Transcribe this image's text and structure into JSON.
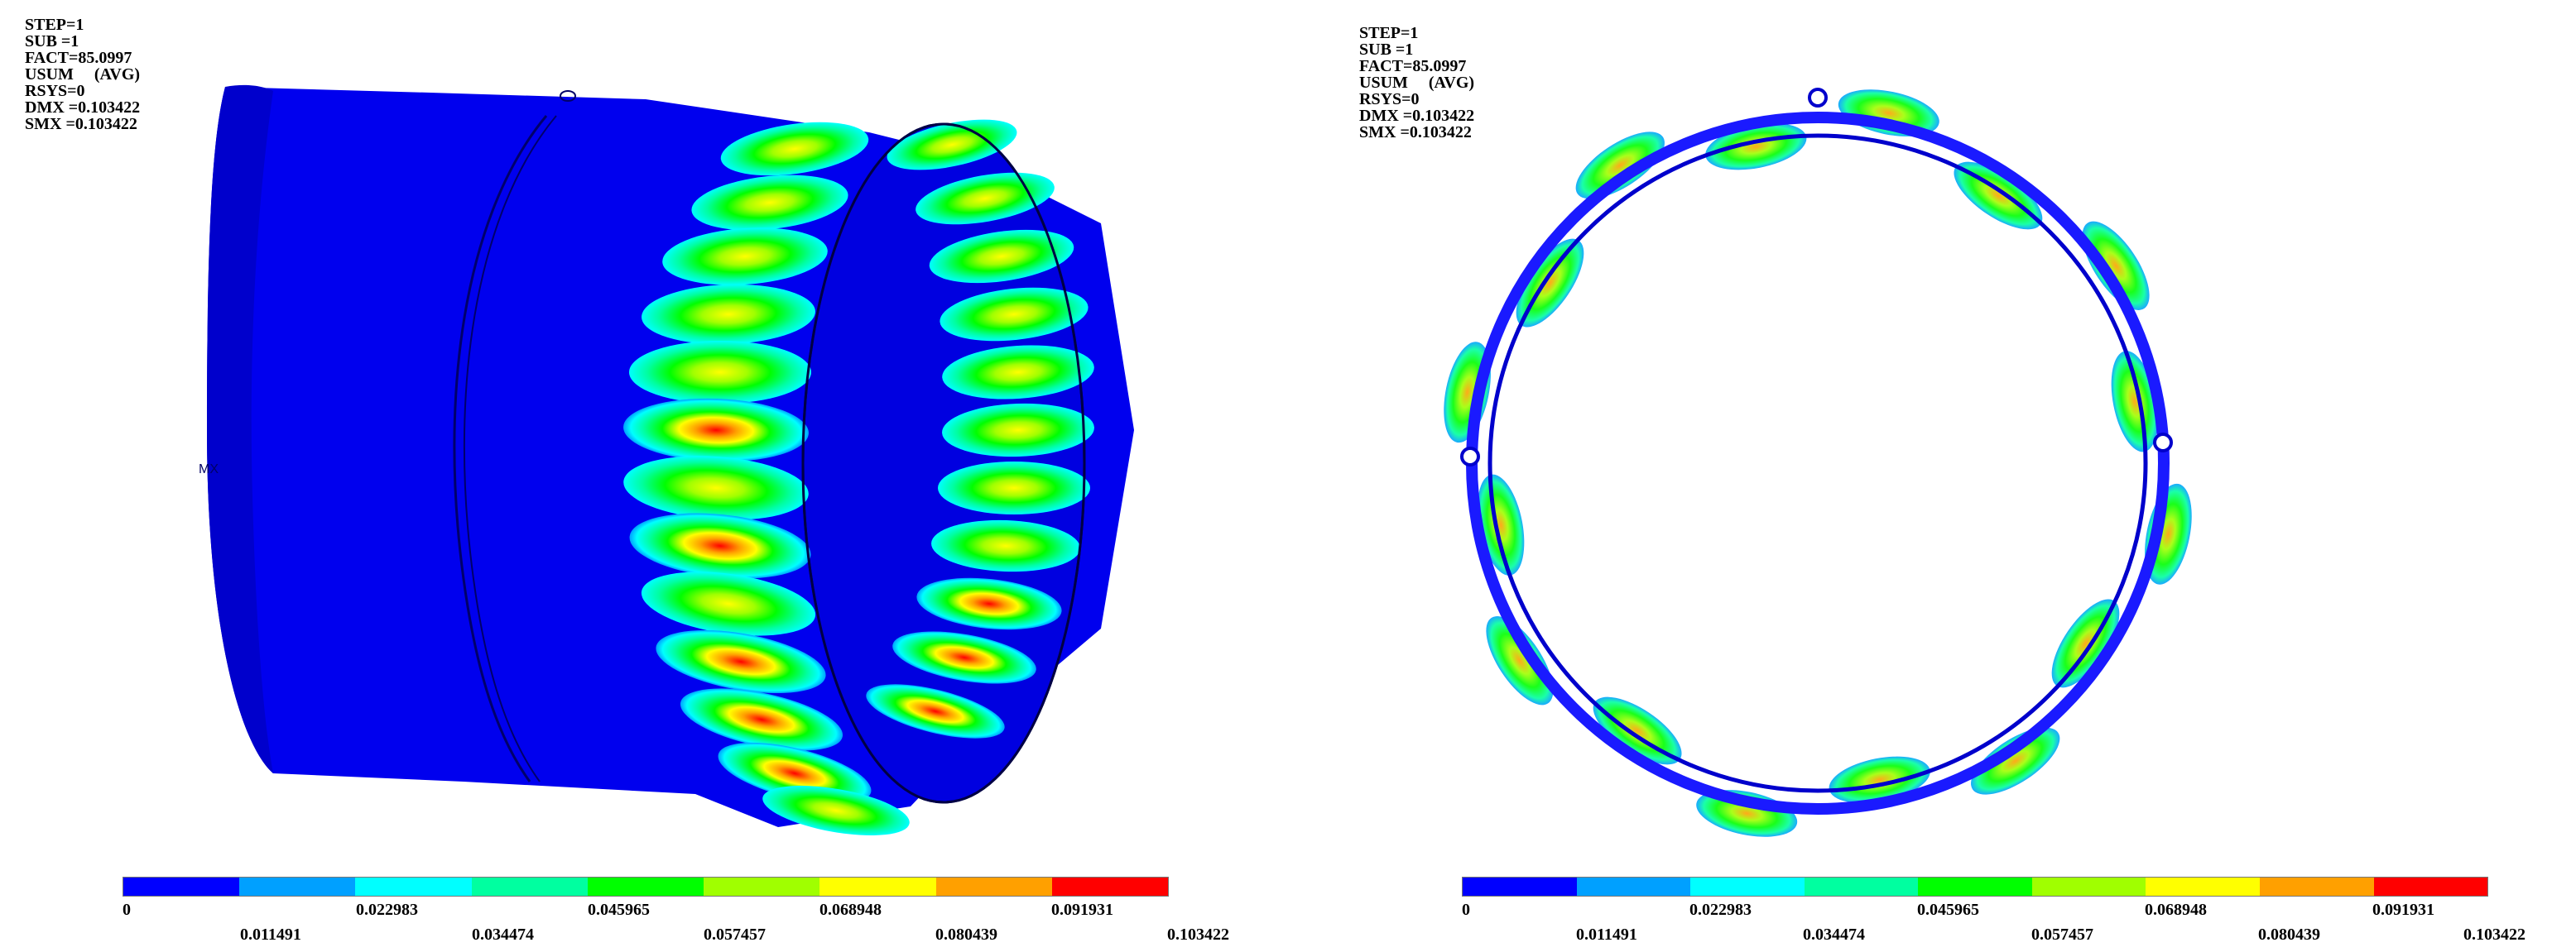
{
  "colormap": [
    "#0000ff",
    "#00a0ff",
    "#00ffff",
    "#00ffa0",
    "#00ff00",
    "#a0ff00",
    "#ffff00",
    "#ffa000",
    "#ff0000"
  ],
  "legend_labels": [
    "0",
    "0.011491",
    "0.022983",
    "0.034474",
    "0.045965",
    "0.057457",
    "0.068948",
    "0.080439",
    "0.091931",
    "0.103422"
  ],
  "panels": [
    {
      "view": "isometric-cylinder",
      "info": {
        "step": "STEP=1",
        "sub": "SUB =1",
        "fact": "FACT=85.0997",
        "usum": "USUM     (AVG)",
        "rsys": "RSYS=0",
        "dmx": "DMX =0.103422",
        "smx": "SMX =0.103422"
      }
    },
    {
      "view": "axial-ring",
      "info": {
        "step": "STEP=1",
        "sub": "SUB =1",
        "fact": "FACT=85.0997",
        "usum": "USUM     (AVG)",
        "rsys": "RSYS=0",
        "dmx": "DMX =0.103422",
        "smx": "SMX =0.103422"
      }
    }
  ]
}
